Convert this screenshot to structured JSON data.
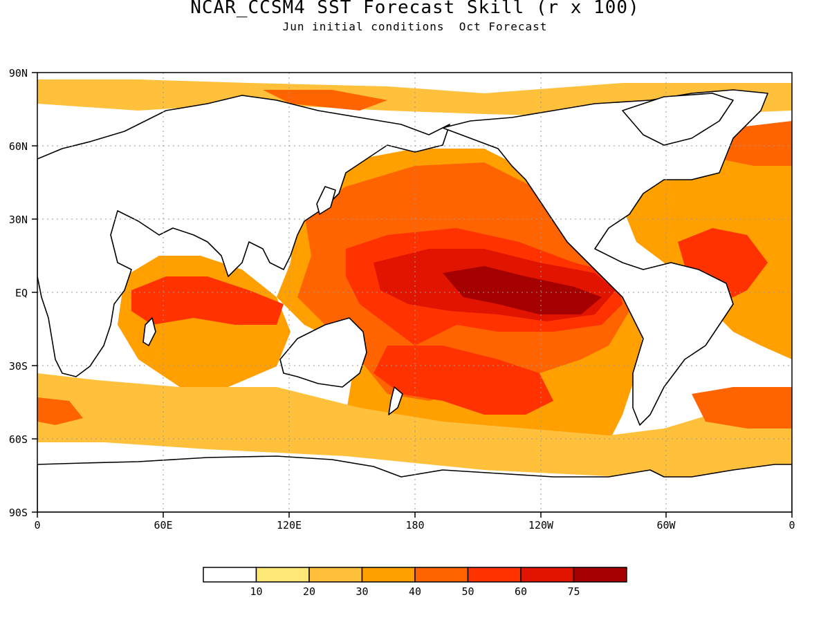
{
  "title": "NCAR_CCSM4 SST Forecast Skill (r x 100)",
  "subtitle": "Jun initial conditions  Oct Forecast",
  "map": {
    "lat_ticks": [
      "90N",
      "60N",
      "30N",
      "EQ",
      "30S",
      "60S",
      "90S"
    ],
    "lon_ticks": [
      "0",
      "60E",
      "120E",
      "180",
      "120W",
      "60W",
      "0"
    ],
    "gridlines": true
  },
  "legend": {
    "labels": [
      "10",
      "20",
      "30",
      "40",
      "50",
      "60",
      "75"
    ],
    "colors": [
      "#ffffff",
      "#ffe878",
      "#ffc03c",
      "#ffa000",
      "#ff6400",
      "#ff3200",
      "#e11400",
      "#a50000"
    ]
  },
  "colors": {
    "land_outline": "#000000",
    "gridline": "#999999"
  }
}
